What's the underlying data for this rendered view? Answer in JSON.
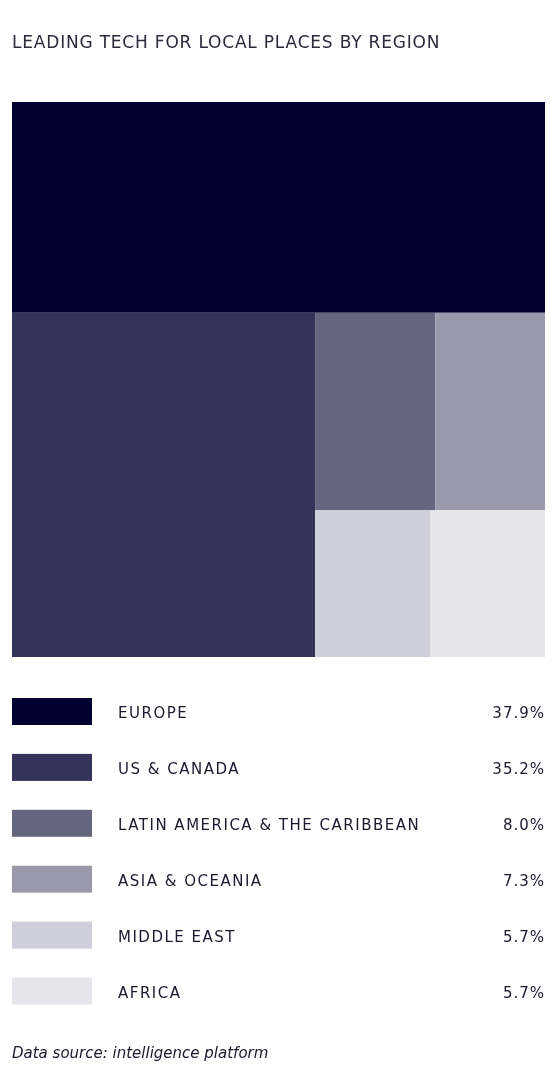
{
  "chart_data": {
    "type": "other",
    "title": "LEADING TECH FOR LOCAL PLACES BY REGION",
    "categories": [
      "EUROPE",
      "US & CANADA",
      "LATIN AMERICA & THE CARIBBEAN",
      "ASIA & OCEANIA",
      "MIDDLE EAST",
      "AFRICA"
    ],
    "values": [
      37.9,
      35.2,
      8.0,
      7.3,
      5.7,
      5.7
    ],
    "value_labels": [
      "37.9%",
      "35.2%",
      "8.0%",
      "7.3%",
      "5.7%",
      "5.7%"
    ],
    "colors": [
      "#02012f",
      "#35335a",
      "#66657f",
      "#9a99ab",
      "#cfcfdb",
      "#e6e5ea"
    ],
    "annotations": [
      "Data source: intelligence platform"
    ]
  }
}
